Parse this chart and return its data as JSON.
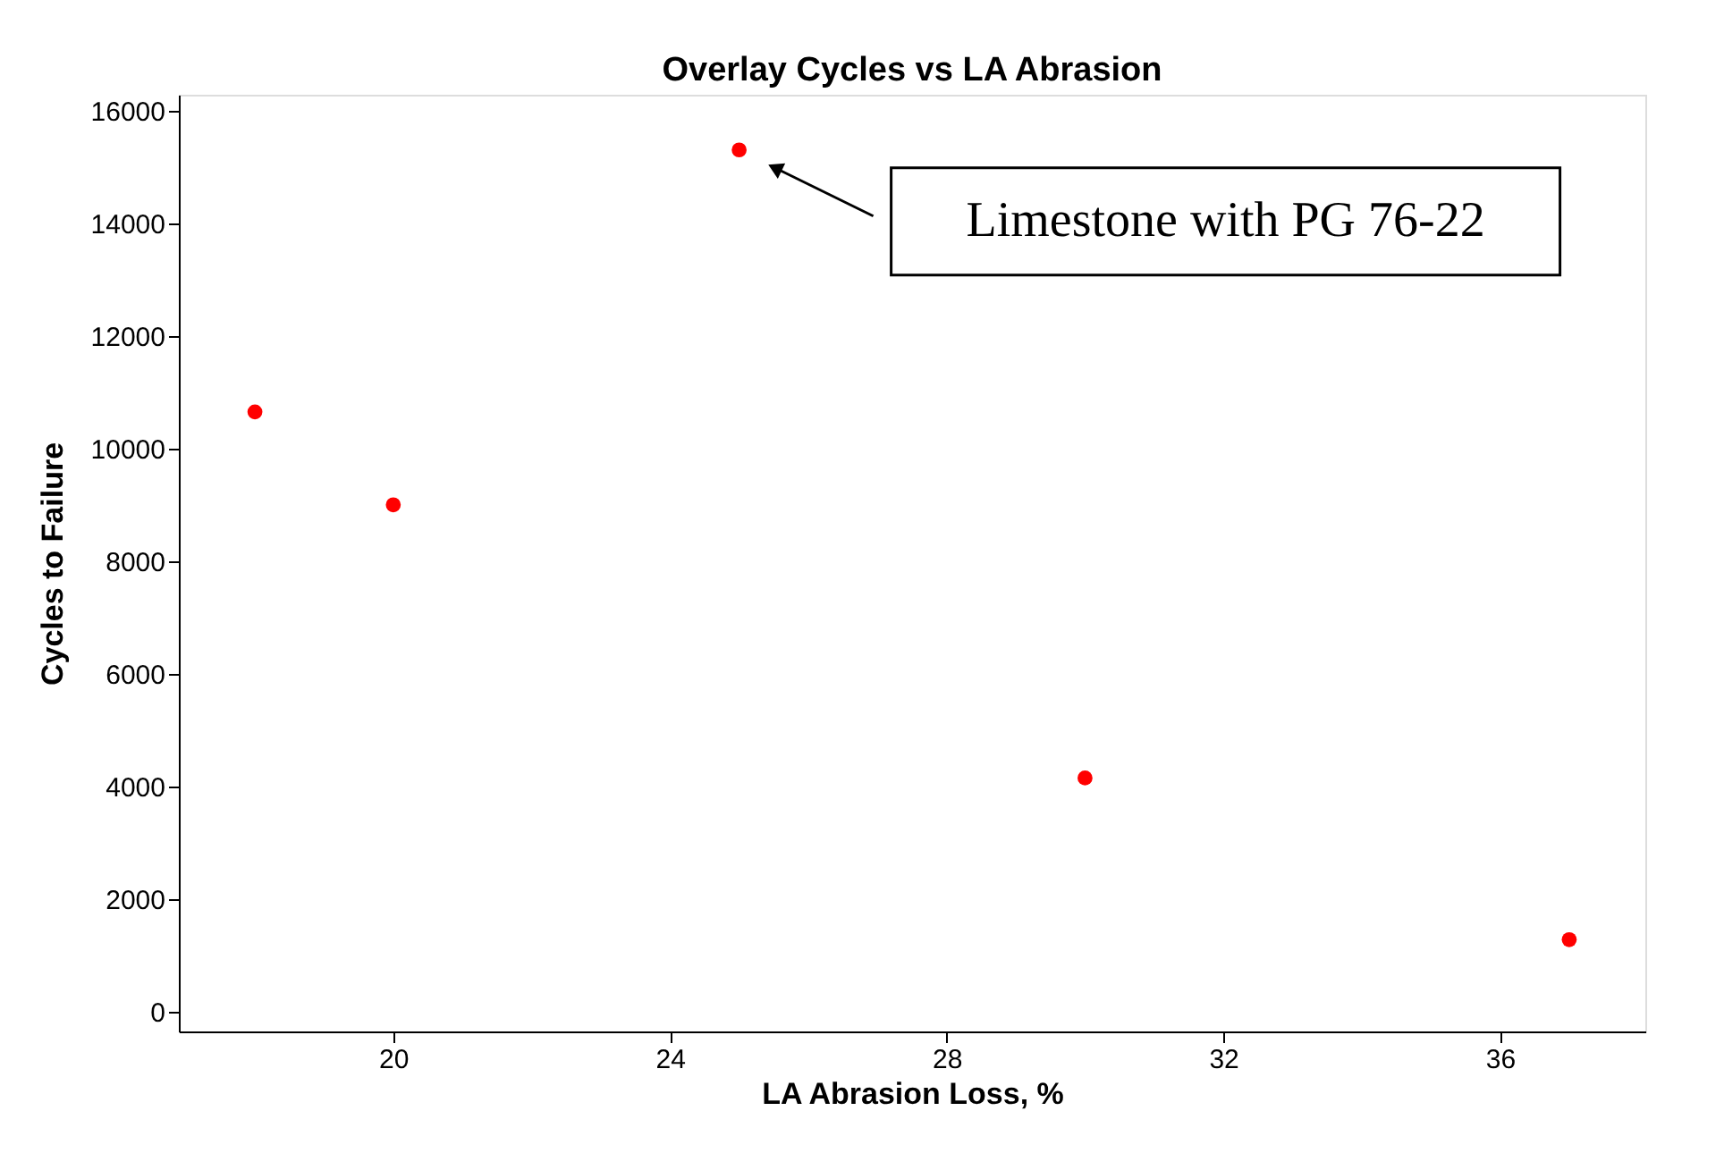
{
  "chart_data": {
    "type": "scatter",
    "title": "Overlay Cycles vs LA Abrasion",
    "xlabel": "LA Abrasion Loss, %",
    "ylabel": "Cycles to Failure",
    "x": [
      18,
      20,
      25,
      30,
      37
    ],
    "values": [
      10650,
      9000,
      15300,
      4150,
      1280
    ],
    "color": "#ff0000",
    "marker": "circle",
    "xlim": [
      16.9,
      38.1
    ],
    "xticks": [
      20,
      24,
      28,
      32,
      36
    ],
    "ylim": [
      -350,
      16280
    ],
    "yticks": [
      0,
      2000,
      4000,
      6000,
      8000,
      10000,
      12000,
      14000,
      16000
    ],
    "grid": false,
    "legend": false,
    "annotations": [
      "Limestone with PG 76-22"
    ]
  }
}
